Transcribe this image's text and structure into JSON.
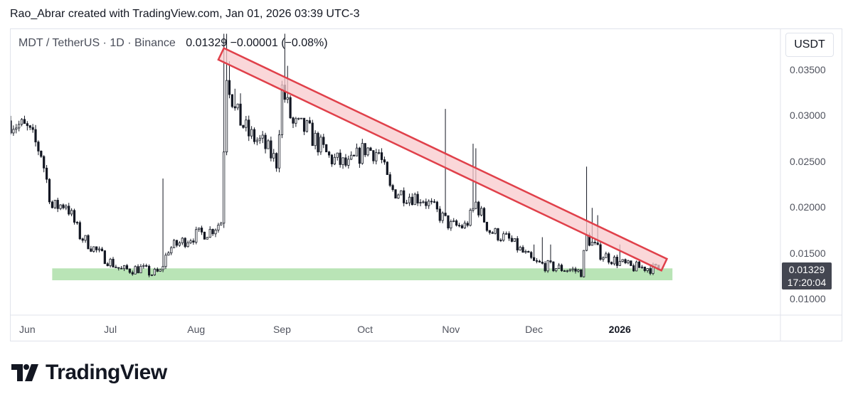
{
  "credit": "Rao_Abrar created with TradingView.com, Jan 01, 2026 03:39 UTC-3",
  "header": {
    "symbol": "MDT / TetherUS · 1D · Binance",
    "values": "0.01329  −0.00001 (−0.08%)"
  },
  "currency_button": "USDT",
  "price_label": {
    "price": "0.01329",
    "countdown": "17:20:04"
  },
  "brand": "TradingView",
  "colors": {
    "candle": "#131722",
    "channel_stroke": "#e0404a",
    "channel_fill": "#f8c9cc",
    "support_fill": "#b9e4b6",
    "grid": "#e0e3eb"
  },
  "chart_data": {
    "type": "candlestick",
    "title": "MDT / TetherUS · 1D · Binance",
    "y_axis": {
      "ticks": [
        "0.01000",
        "0.01500",
        "0.02000",
        "0.02500",
        "0.03000",
        "0.03500"
      ],
      "range": [
        0.0083,
        0.0395
      ]
    },
    "x_axis": {
      "ticks": [
        "Jun",
        "Jul",
        "Aug",
        "Sep",
        "Oct",
        "Nov",
        "Dec",
        "2026"
      ],
      "range": [
        "2025-05-26",
        "2026-02-28"
      ]
    },
    "last_price": 0.01329,
    "change": -1e-05,
    "change_pct": -0.08,
    "anchors": [
      [
        "2025-05-26",
        0.0295
      ],
      [
        "2025-06-01",
        0.0285
      ],
      [
        "2025-06-06",
        0.026
      ],
      [
        "2025-06-10",
        0.02
      ],
      [
        "2025-06-15",
        0.0205
      ],
      [
        "2025-06-20",
        0.017
      ],
      [
        "2025-06-27",
        0.015
      ],
      [
        "2025-07-05",
        0.0132
      ],
      [
        "2025-07-12",
        0.0134
      ],
      [
        "2025-07-16",
        0.0128
      ],
      [
        "2025-07-19",
        0.013
      ],
      [
        "2025-07-22",
        0.0155
      ],
      [
        "2025-07-30",
        0.0168
      ],
      [
        "2025-08-06",
        0.0175
      ],
      [
        "2025-08-10",
        0.0185
      ],
      [
        "2025-08-12",
        0.035
      ],
      [
        "2025-08-15",
        0.0305
      ],
      [
        "2025-08-20",
        0.028
      ],
      [
        "2025-08-25",
        0.027
      ],
      [
        "2025-08-30",
        0.025
      ],
      [
        "2025-09-01",
        0.033
      ],
      [
        "2025-09-05",
        0.029
      ],
      [
        "2025-09-10",
        0.0285
      ],
      [
        "2025-09-18",
        0.0255
      ],
      [
        "2025-09-25",
        0.0245
      ],
      [
        "2025-10-01",
        0.0265
      ],
      [
        "2025-10-06",
        0.026
      ],
      [
        "2025-10-10",
        0.022
      ],
      [
        "2025-10-15",
        0.0215
      ],
      [
        "2025-10-22",
        0.021
      ],
      [
        "2025-10-27",
        0.0195
      ],
      [
        "2025-11-01",
        0.018
      ],
      [
        "2025-11-06",
        0.018
      ],
      [
        "2025-11-08",
        0.019
      ],
      [
        "2025-11-10",
        0.0205
      ],
      [
        "2025-11-15",
        0.0175
      ],
      [
        "2025-11-22",
        0.0165
      ],
      [
        "2025-12-01",
        0.014
      ],
      [
        "2025-12-08",
        0.0135
      ],
      [
        "2025-12-15",
        0.0132
      ],
      [
        "2025-12-18",
        0.013
      ],
      [
        "2025-12-20",
        0.0168
      ],
      [
        "2025-12-25",
        0.015
      ],
      [
        "2026-01-01",
        0.014
      ],
      [
        "2026-01-05",
        0.0135
      ],
      [
        "2026-01-10",
        0.0135
      ],
      [
        "2026-01-15",
        0.0133
      ]
    ],
    "spikes": [
      [
        "2025-07-20",
        0.0232
      ],
      [
        "2025-08-11",
        0.039
      ],
      [
        "2025-08-12",
        0.039
      ],
      [
        "2025-08-13",
        0.036
      ],
      [
        "2025-08-15",
        0.033
      ],
      [
        "2025-08-17",
        0.0325
      ],
      [
        "2025-09-02",
        0.039
      ],
      [
        "2025-09-03",
        0.0355
      ],
      [
        "2025-10-30",
        0.0308
      ],
      [
        "2025-11-09",
        0.027
      ],
      [
        "2025-11-10",
        0.0265
      ],
      [
        "2025-12-01",
        0.016
      ],
      [
        "2025-12-04",
        0.0168
      ],
      [
        "2025-12-07",
        0.016
      ],
      [
        "2025-12-20",
        0.0245
      ],
      [
        "2025-12-22",
        0.02
      ],
      [
        "2025-12-24",
        0.0192
      ],
      [
        "2026-01-01",
        0.016
      ]
    ],
    "drawings": {
      "descending_channel": {
        "from": [
          "2025-08-10",
          0.0368
        ],
        "to": [
          "2026-01-17",
          0.0138
        ],
        "width": 0.0014
      },
      "support_zone": {
        "from": "2025-06-10",
        "to": "2026-01-20",
        "top": 0.0134,
        "bottom": 0.0121
      }
    }
  }
}
